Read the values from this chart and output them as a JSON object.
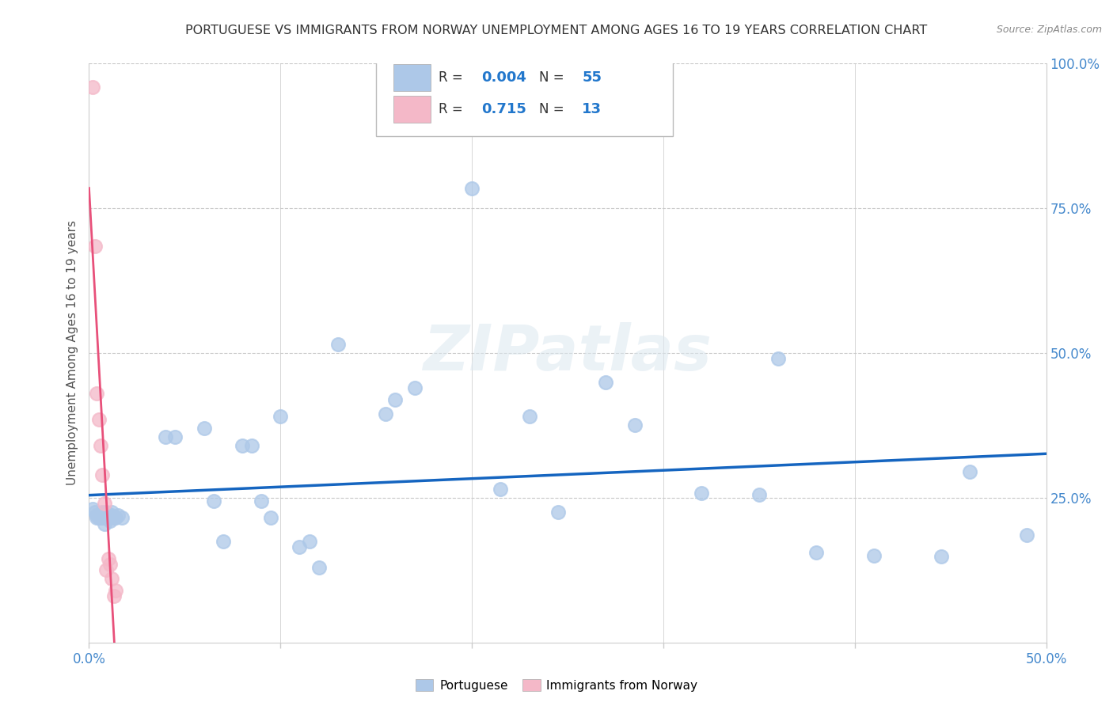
{
  "title": "PORTUGUESE VS IMMIGRANTS FROM NORWAY UNEMPLOYMENT AMONG AGES 16 TO 19 YEARS CORRELATION CHART",
  "source": "Source: ZipAtlas.com",
  "ylabel": "Unemployment Among Ages 16 to 19 years",
  "xlim": [
    0.0,
    0.5
  ],
  "ylim": [
    0.0,
    1.0
  ],
  "ytick_labels": [
    "",
    "25.0%",
    "50.0%",
    "75.0%",
    "100.0%"
  ],
  "ytick_positions": [
    0.0,
    0.25,
    0.5,
    0.75,
    1.0
  ],
  "xtick_positions": [
    0.0,
    0.1,
    0.2,
    0.3,
    0.4,
    0.5
  ],
  "xtick_labels": [
    "0.0%",
    "",
    "",
    "",
    "",
    "50.0%"
  ],
  "watermark": "ZIPatlas",
  "portuguese_color": "#adc8e8",
  "norway_color": "#f4b8c8",
  "portuguese_line_color": "#1565c0",
  "norway_line_color": "#e8507a",
  "R_portuguese": 0.004,
  "N_portuguese": 55,
  "R_norway": 0.715,
  "N_norway": 13,
  "hline_y": 0.245,
  "hline_color": "#1565c0",
  "portuguese_x": [
    0.002,
    0.003,
    0.004,
    0.004,
    0.005,
    0.005,
    0.006,
    0.006,
    0.007,
    0.007,
    0.008,
    0.008,
    0.009,
    0.009,
    0.01,
    0.01,
    0.011,
    0.011,
    0.012,
    0.012,
    0.013,
    0.014,
    0.015,
    0.017,
    0.04,
    0.045,
    0.06,
    0.065,
    0.07,
    0.08,
    0.085,
    0.09,
    0.095,
    0.1,
    0.11,
    0.115,
    0.12,
    0.13,
    0.155,
    0.16,
    0.17,
    0.2,
    0.215,
    0.23,
    0.245,
    0.27,
    0.285,
    0.32,
    0.35,
    0.36,
    0.38,
    0.41,
    0.445,
    0.46,
    0.49
  ],
  "portuguese_y": [
    0.23,
    0.225,
    0.215,
    0.22,
    0.215,
    0.22,
    0.215,
    0.22,
    0.225,
    0.215,
    0.205,
    0.22,
    0.215,
    0.225,
    0.215,
    0.22,
    0.21,
    0.215,
    0.22,
    0.225,
    0.215,
    0.215,
    0.22,
    0.215,
    0.355,
    0.355,
    0.37,
    0.245,
    0.175,
    0.34,
    0.34,
    0.245,
    0.215,
    0.39,
    0.165,
    0.175,
    0.13,
    0.515,
    0.395,
    0.42,
    0.44,
    0.785,
    0.265,
    0.39,
    0.225,
    0.45,
    0.375,
    0.258,
    0.255,
    0.49,
    0.155,
    0.15,
    0.148,
    0.295,
    0.185
  ],
  "norway_x": [
    0.002,
    0.003,
    0.004,
    0.005,
    0.006,
    0.007,
    0.008,
    0.009,
    0.01,
    0.011,
    0.012,
    0.013,
    0.014
  ],
  "norway_y": [
    0.96,
    0.685,
    0.43,
    0.385,
    0.34,
    0.29,
    0.24,
    0.125,
    0.145,
    0.135,
    0.11,
    0.08,
    0.09
  ],
  "norway_line_x0": 0.0,
  "norway_line_x1": 0.016,
  "background_color": "#ffffff",
  "grid_color": "#c8c8c8",
  "title_color": "#333333",
  "legend_label_portuguese": "Portuguese",
  "legend_label_norway": "Immigrants from Norway"
}
